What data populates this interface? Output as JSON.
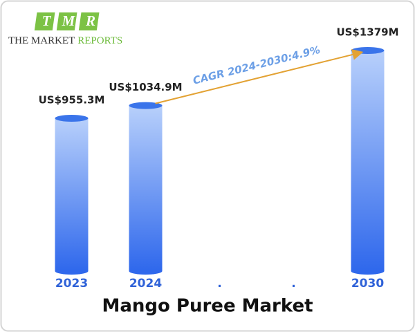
{
  "logo": {
    "letters": [
      "T",
      "M",
      "R"
    ],
    "name": "THE MARKET",
    "name_accent": "REPORTS"
  },
  "chart_data": {
    "type": "bar",
    "title": "Mango Puree Market",
    "categories": [
      "2023",
      "2024",
      ".",
      ".",
      "2030"
    ],
    "values": [
      955.3,
      1034.9,
      null,
      null,
      1379
    ],
    "value_labels": [
      "US$955.3M",
      "US$1034.9M",
      null,
      null,
      "US$1379M"
    ],
    "annotation": "CAGR 2024-2030:4.9%",
    "color": "#3a74ea"
  }
}
